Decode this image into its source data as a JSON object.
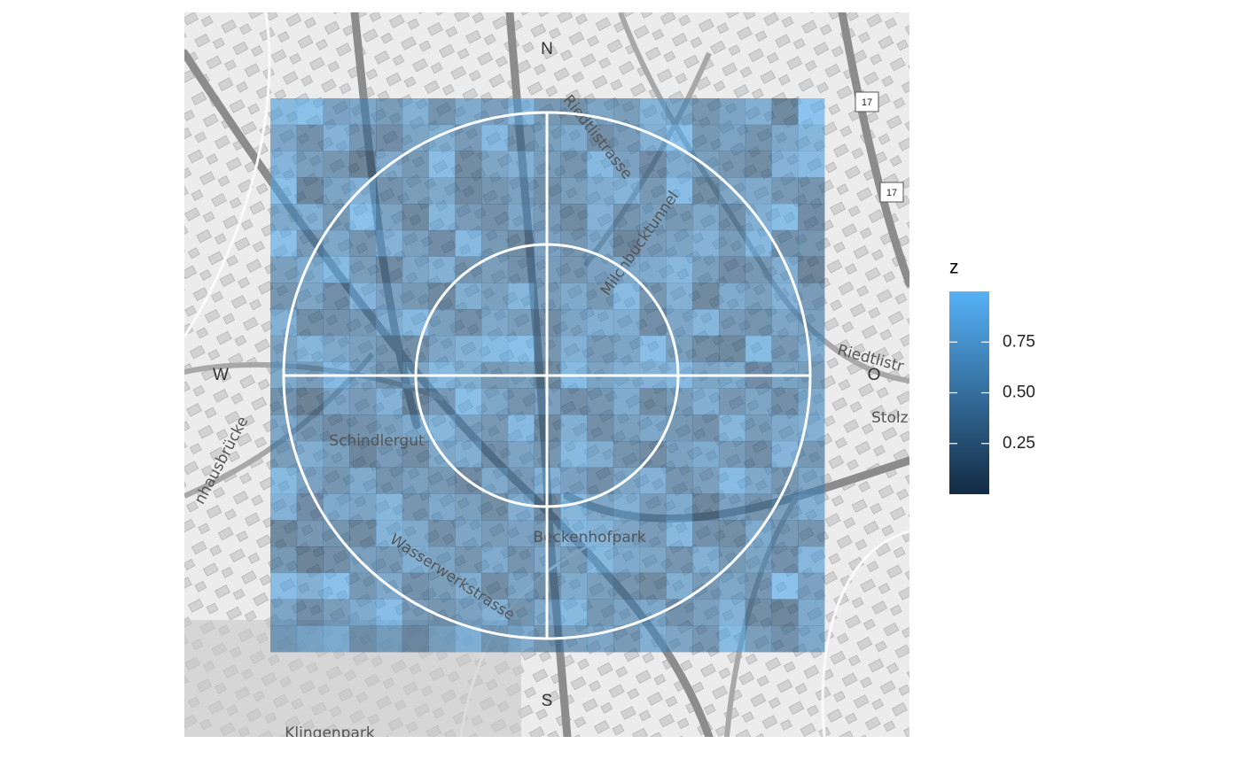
{
  "chart_data": {
    "type": "heatmap",
    "legend_title": "z",
    "compass": {
      "north": "N",
      "south": "S",
      "west": "W",
      "east": "O"
    },
    "map_labels": [
      "Riedtlistrasse",
      "Milchbucktunnel",
      "Schindlergut",
      "Wasserwerkstrasse",
      "Beckenhofpark",
      "Klingenpark",
      "Stolz",
      "Riedtlistr",
      "17",
      "17",
      "nhausbrücke"
    ],
    "colorscale": [
      "#132B43",
      "#56B1F7"
    ],
    "zlim": [
      0,
      1
    ],
    "zticks": [
      0.25,
      {
        "value": 0.5,
        "label": "0.50"
      },
      0.75
    ],
    "z": [
      [
        0.82,
        0.9,
        0.55,
        0.61,
        0.47,
        0.72,
        0.38,
        0.66,
        0.51,
        0.8,
        0.44,
        0.35,
        0.58,
        0.49,
        0.76,
        0.62,
        0.41,
        0.57,
        0.7,
        0.25,
        0.95
      ],
      [
        0.6,
        0.35,
        0.74,
        0.42,
        0.3,
        0.58,
        0.69,
        0.46,
        0.83,
        0.39,
        0.52,
        0.64,
        0.33,
        0.48,
        0.71,
        0.9,
        0.43,
        0.56,
        0.37,
        0.61,
        0.78
      ],
      [
        0.77,
        0.52,
        0.4,
        0.18,
        0.63,
        0.44,
        0.86,
        0.28,
        0.59,
        0.72,
        0.47,
        0.38,
        0.81,
        0.55,
        0.3,
        0.66,
        0.52,
        0.4,
        0.29,
        0.74,
        0.85
      ],
      [
        0.88,
        0.22,
        0.57,
        0.71,
        0.35,
        0.49,
        0.62,
        0.26,
        0.41,
        0.55,
        0.33,
        0.5,
        0.68,
        0.76,
        0.44,
        0.87,
        0.31,
        0.58,
        0.63,
        0.45,
        0.37
      ],
      [
        0.64,
        0.7,
        0.43,
        0.92,
        0.56,
        0.25,
        0.79,
        0.48,
        0.34,
        0.6,
        0.46,
        0.27,
        0.73,
        0.39,
        0.52,
        0.44,
        0.61,
        0.36,
        0.7,
        0.88,
        0.3
      ],
      [
        0.91,
        0.46,
        0.61,
        0.37,
        0.74,
        0.52,
        0.3,
        0.83,
        0.45,
        0.28,
        0.54,
        0.41,
        0.62,
        0.22,
        0.48,
        0.57,
        0.74,
        0.47,
        0.81,
        0.35,
        0.41
      ],
      [
        0.53,
        0.66,
        0.84,
        0.49,
        0.27,
        0.6,
        0.71,
        0.38,
        0.5,
        0.36,
        0.47,
        0.39,
        0.55,
        0.61,
        0.66,
        0.8,
        0.52,
        0.3,
        0.44,
        0.68,
        0.2
      ],
      [
        0.4,
        0.58,
        0.32,
        0.77,
        0.55,
        0.43,
        0.26,
        0.69,
        0.53,
        0.78,
        0.48,
        0.63,
        0.44,
        0.85,
        0.4,
        0.72,
        0.25,
        0.66,
        0.53,
        0.74,
        0.48
      ],
      [
        0.72,
        0.31,
        0.36,
        0.44,
        0.68,
        0.81,
        0.52,
        0.33,
        0.62,
        0.5,
        0.3,
        0.57,
        0.7,
        0.68,
        0.32,
        0.6,
        0.79,
        0.46,
        0.38,
        0.6,
        0.52
      ],
      [
        0.55,
        0.79,
        0.62,
        0.52,
        0.41,
        0.34,
        0.6,
        0.75,
        0.84,
        0.9,
        0.4,
        0.72,
        0.46,
        0.58,
        0.87,
        0.52,
        0.31,
        0.25,
        0.84,
        0.42,
        0.66
      ],
      [
        0.63,
        0.48,
        0.83,
        0.6,
        0.38,
        0.57,
        0.82,
        0.69,
        0.44,
        0.53,
        0.28,
        0.84,
        0.56,
        0.7,
        0.74,
        0.8,
        0.58,
        0.67,
        0.3,
        0.56,
        0.49
      ],
      [
        0.35,
        0.18,
        0.57,
        0.46,
        0.73,
        0.26,
        0.45,
        0.88,
        0.61,
        0.37,
        0.51,
        0.32,
        0.4,
        0.65,
        0.28,
        0.47,
        0.7,
        0.42,
        0.58,
        0.33,
        0.64
      ],
      [
        0.6,
        0.42,
        0.3,
        0.36,
        0.52,
        0.66,
        0.78,
        0.55,
        0.43,
        0.83,
        0.25,
        0.7,
        0.33,
        0.52,
        0.61,
        0.44,
        0.36,
        0.79,
        0.47,
        0.62,
        0.71
      ],
      [
        0.49,
        0.68,
        0.52,
        0.22,
        0.48,
        0.29,
        0.61,
        0.7,
        0.34,
        0.57,
        0.4,
        0.82,
        0.68,
        0.38,
        0.29,
        0.55,
        0.66,
        0.48,
        0.32,
        0.77,
        0.44
      ],
      [
        0.82,
        0.55,
        0.41,
        0.63,
        0.37,
        0.52,
        0.44,
        0.27,
        0.62,
        0.45,
        0.72,
        0.54,
        0.33,
        0.58,
        0.73,
        0.39,
        0.51,
        0.84,
        0.62,
        0.4,
        0.59
      ],
      [
        0.73,
        0.3,
        0.64,
        0.57,
        0.79,
        0.41,
        0.62,
        0.52,
        0.31,
        0.68,
        0.27,
        0.78,
        0.6,
        0.72,
        0.46,
        0.66,
        0.23,
        0.55,
        0.38,
        0.53,
        0.71
      ],
      [
        0.25,
        0.42,
        0.37,
        0.28,
        0.76,
        0.63,
        0.34,
        0.6,
        0.47,
        0.55,
        0.43,
        0.8,
        0.75,
        0.58,
        0.48,
        0.81,
        0.35,
        0.31,
        0.64,
        0.45,
        0.39
      ],
      [
        0.44,
        0.19,
        0.33,
        0.52,
        0.45,
        0.7,
        0.57,
        0.41,
        0.65,
        0.38,
        0.6,
        0.47,
        0.82,
        0.64,
        0.59,
        0.4,
        0.72,
        0.44,
        0.58,
        0.36,
        0.8
      ],
      [
        0.86,
        0.72,
        0.9,
        0.43,
        0.62,
        0.35,
        0.5,
        0.68,
        0.29,
        0.57,
        0.33,
        0.66,
        0.52,
        0.4,
        0.28,
        0.69,
        0.45,
        0.61,
        0.42,
        0.92,
        0.55
      ],
      [
        0.58,
        0.32,
        0.49,
        0.66,
        0.87,
        0.46,
        0.4,
        0.55,
        0.72,
        0.38,
        0.62,
        0.82,
        0.44,
        0.57,
        0.61,
        0.35,
        0.52,
        0.75,
        0.31,
        0.24,
        0.64
      ],
      [
        0.52,
        0.66,
        0.75,
        0.41,
        0.57,
        0.33,
        0.59,
        0.8,
        0.49,
        0.65,
        0.37,
        0.53,
        0.6,
        0.46,
        0.7,
        0.58,
        0.42,
        0.84,
        0.5,
        0.36,
        0.62
      ]
    ]
  }
}
